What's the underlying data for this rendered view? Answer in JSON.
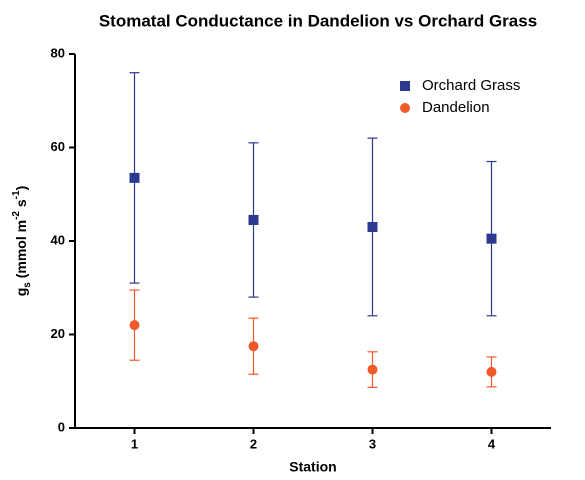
{
  "chart_data": {
    "type": "scatter",
    "title": "Stomatal Conductance in Dandelion vs Orchard Grass",
    "xlabel": "Station",
    "ylabel": [
      "g",
      "s",
      " (mmol m",
      "-2",
      " s",
      "-1",
      ")"
    ],
    "x": [
      1,
      2,
      3,
      4
    ],
    "xlim": [
      0.5,
      4.5
    ],
    "xticks": [
      1,
      2,
      3,
      4
    ],
    "ylim": [
      0,
      80
    ],
    "yticks": [
      0,
      20,
      40,
      60,
      80
    ],
    "grid": false,
    "legend": "upper right",
    "series": [
      {
        "name": "Orchard Grass",
        "color": "#2b3990",
        "marker": "square",
        "values": [
          53.5,
          44.5,
          43,
          40.5
        ],
        "errors": [
          22.5,
          16.5,
          19,
          16.5
        ]
      },
      {
        "name": "Dandelion",
        "color": "#f05a28",
        "marker": "circle",
        "values": [
          22,
          17.5,
          12.5,
          12
        ],
        "errors": [
          7.5,
          6,
          3.8,
          3.2
        ]
      }
    ]
  }
}
